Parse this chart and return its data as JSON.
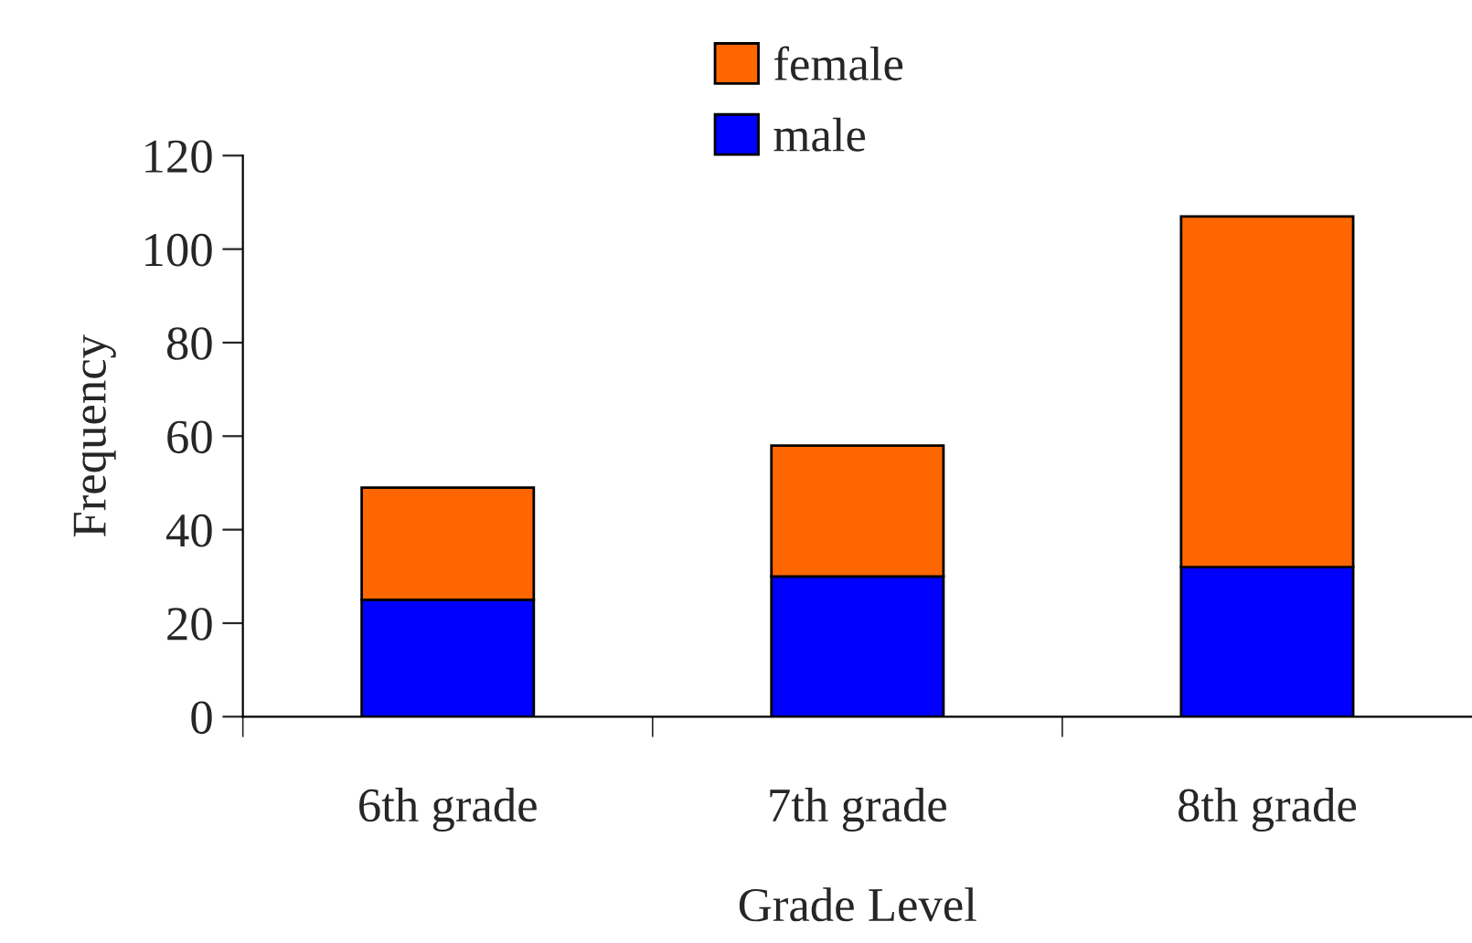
{
  "chart_data": {
    "type": "bar",
    "stacked": true,
    "xlabel": "Grade Level",
    "ylabel": "Frequency",
    "categories": [
      "6th grade",
      "7th grade",
      "8th grade"
    ],
    "series": [
      {
        "name": "male",
        "color": "#0000ff",
        "values": [
          25,
          30,
          32
        ]
      },
      {
        "name": "female",
        "color": "#ff6600",
        "values": [
          24,
          28,
          75
        ]
      }
    ],
    "ylim": [
      0,
      120
    ],
    "yticks": [
      0,
      20,
      40,
      60,
      80,
      100,
      120
    ],
    "grid": false,
    "legend": "top"
  }
}
